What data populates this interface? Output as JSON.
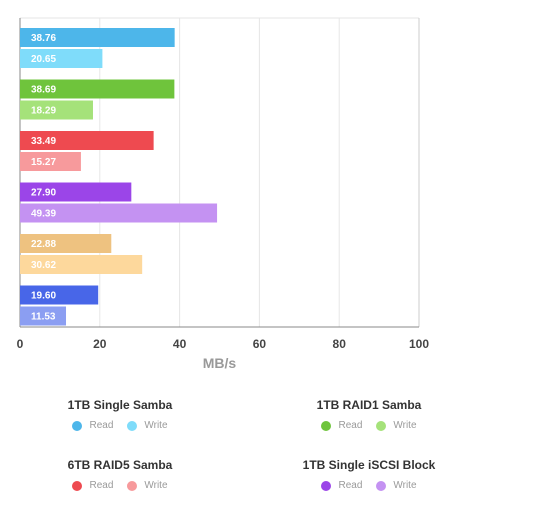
{
  "chart_data": {
    "type": "bar",
    "orientation": "horizontal",
    "xlabel": "MB/s",
    "xlim": [
      0,
      100
    ],
    "xticks": [
      0,
      20,
      40,
      60,
      80,
      100
    ],
    "grid": true,
    "legend_placement": "bottom",
    "groups": [
      {
        "name": "1TB Single Samba",
        "bars": [
          {
            "series": "Read",
            "value": 38.76,
            "label": "38.76",
            "color": "#4db6ea"
          },
          {
            "series": "Write",
            "value": 20.65,
            "label": "20.65",
            "color": "#7fdcfa"
          }
        ]
      },
      {
        "name": "1TB RAID1 Samba",
        "bars": [
          {
            "series": "Read",
            "value": 38.69,
            "label": "38.69",
            "color": "#6fc43c"
          },
          {
            "series": "Write",
            "value": 18.29,
            "label": "18.29",
            "color": "#a5e27a"
          }
        ]
      },
      {
        "name": "6TB RAID5 Samba",
        "bars": [
          {
            "series": "Read",
            "value": 33.49,
            "label": "33.49",
            "color": "#ee4a50"
          },
          {
            "series": "Write",
            "value": 15.27,
            "label": "15.27",
            "color": "#f79a9c"
          }
        ]
      },
      {
        "name": "1TB Single iSCSI Block",
        "bars": [
          {
            "series": "Read",
            "value": 27.9,
            "label": "27.90",
            "color": "#9b45e8"
          },
          {
            "series": "Write",
            "value": 49.39,
            "label": "49.39",
            "color": "#c492f2"
          }
        ]
      },
      {
        "name": "",
        "bars": [
          {
            "series": "Read",
            "value": 22.88,
            "label": "22.88",
            "color": "#eec280"
          },
          {
            "series": "Write",
            "value": 30.62,
            "label": "30.62",
            "color": "#fdd89c"
          }
        ]
      },
      {
        "name": "",
        "bars": [
          {
            "series": "Read",
            "value": 19.6,
            "label": "19.60",
            "color": "#4866e8"
          },
          {
            "series": "Write",
            "value": 11.53,
            "label": "11.53",
            "color": "#8b9ef2"
          }
        ]
      }
    ]
  },
  "legend": [
    {
      "title": "1TB Single Samba",
      "read_label": "Read",
      "write_label": "Write",
      "read_color": "#4db6ea",
      "write_color": "#7fdcfa"
    },
    {
      "title": "1TB RAID1 Samba",
      "read_label": "Read",
      "write_label": "Write",
      "read_color": "#6fc43c",
      "write_color": "#a5e27a"
    },
    {
      "title": "6TB RAID5 Samba",
      "read_label": "Read",
      "write_label": "Write",
      "read_color": "#ee4a50",
      "write_color": "#f79a9c"
    },
    {
      "title": "1TB Single iSCSI Block",
      "read_label": "Read",
      "write_label": "Write",
      "read_color": "#9b45e8",
      "write_color": "#c492f2"
    }
  ],
  "colors": {
    "grid": "#e6e6e6",
    "axis": "#888888",
    "tick_text": "#444444",
    "xlabel_text": "#999999",
    "bar_label_text": "#ffffff"
  }
}
